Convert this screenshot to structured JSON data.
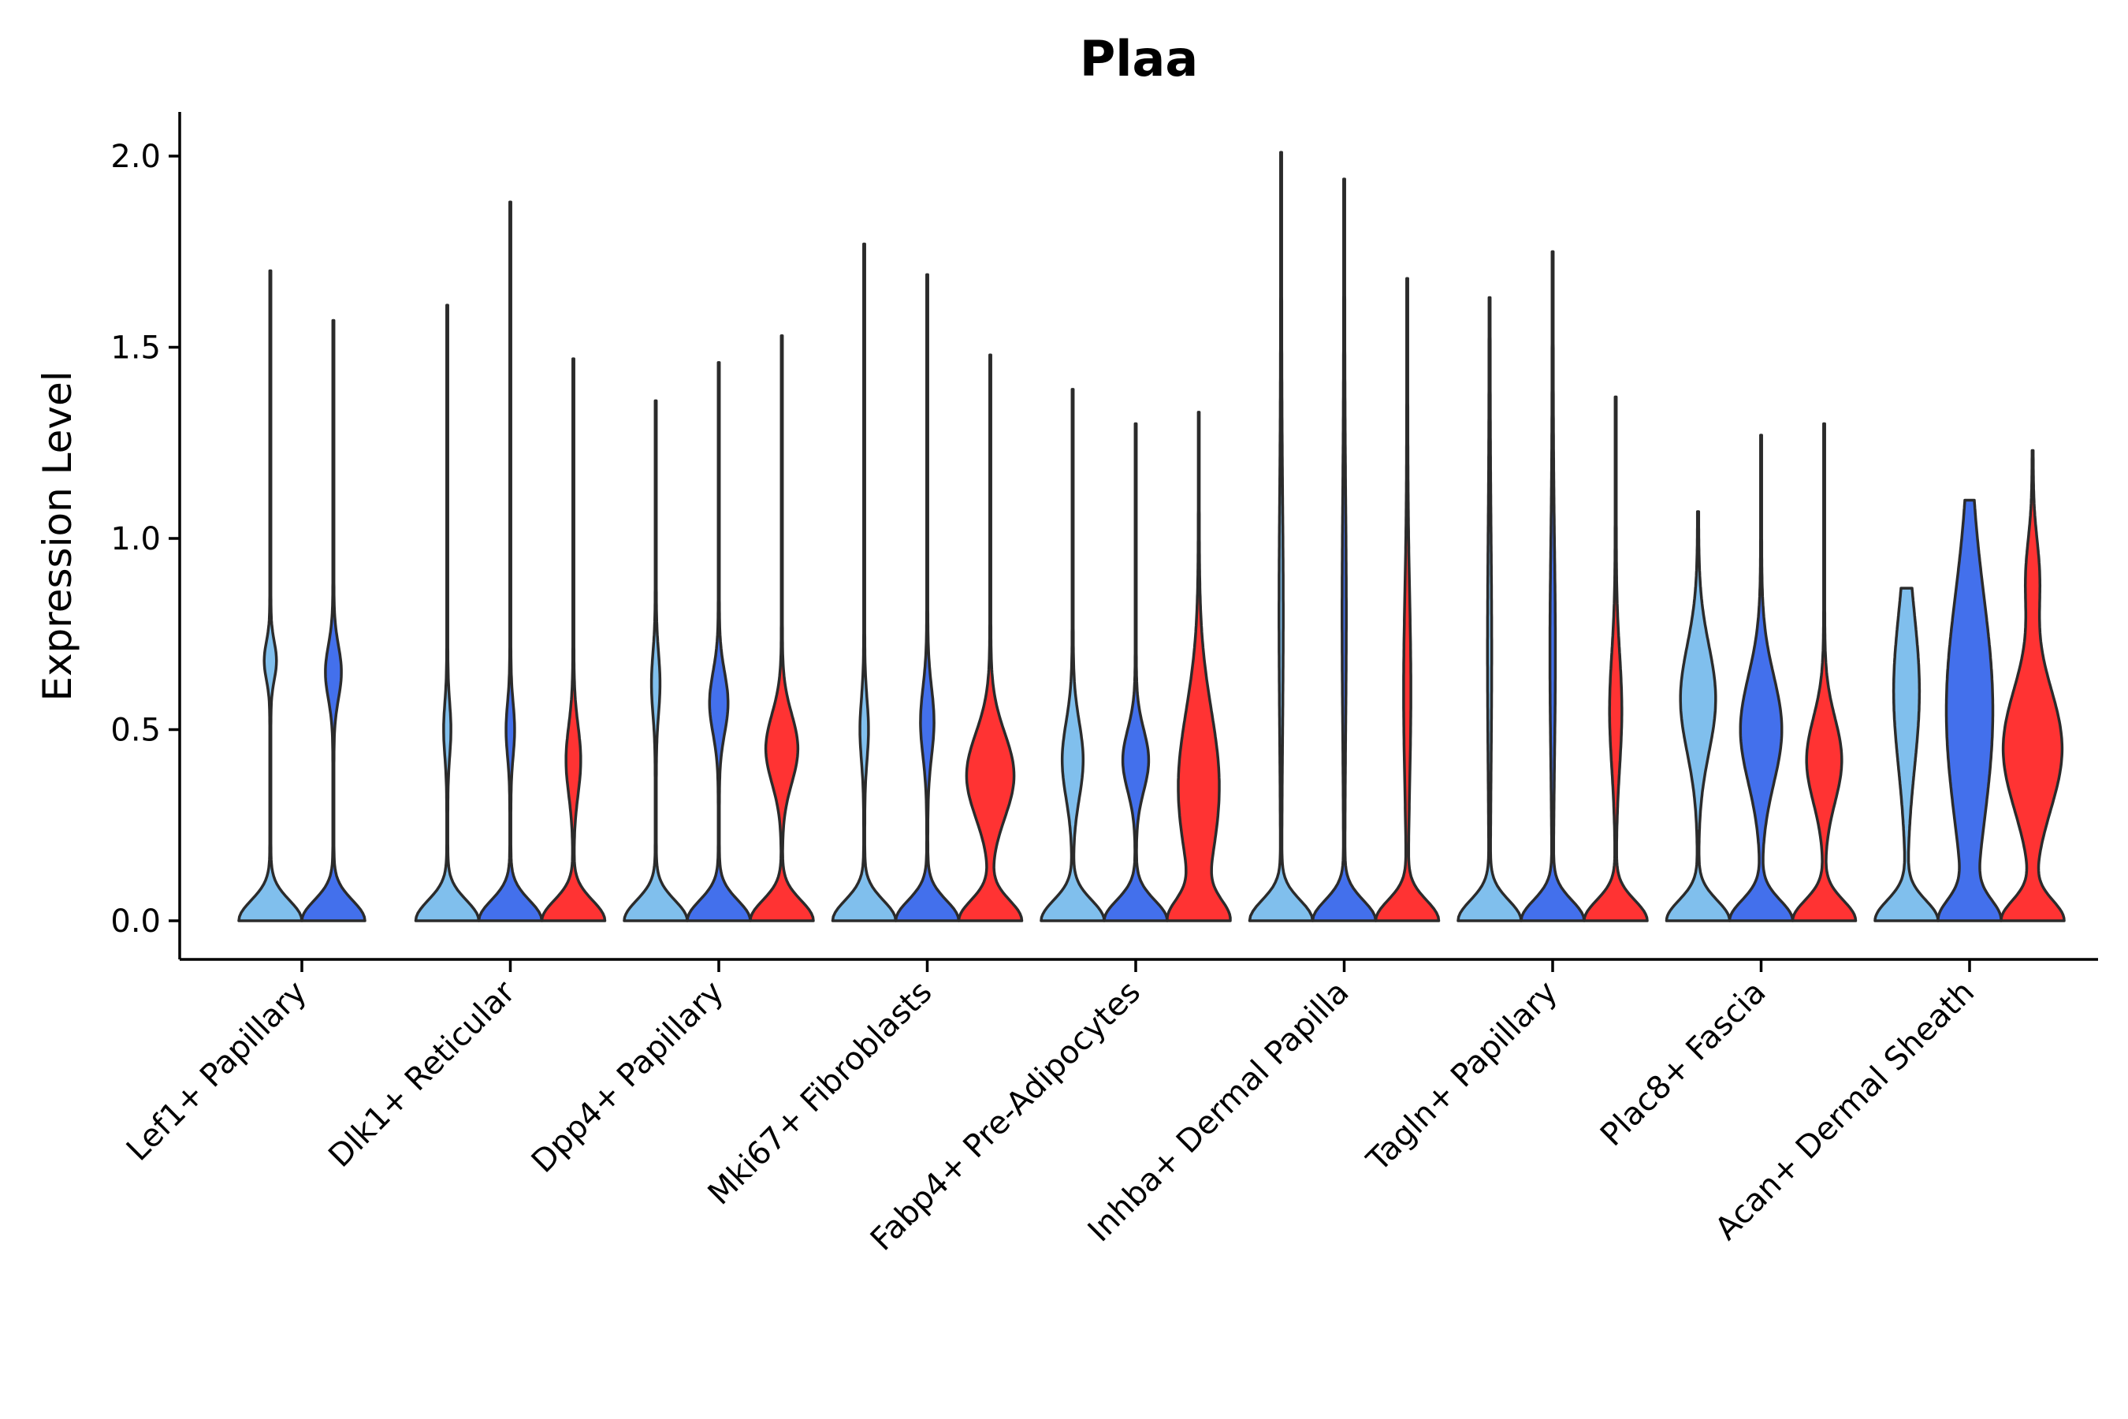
{
  "chart_data": {
    "type": "violin",
    "title": "Plaa",
    "xlabel": "",
    "ylabel": "Expression Level",
    "ylim": [
      -0.1,
      2.12
    ],
    "yticks": [
      "0.0",
      "0.5",
      "1.0",
      "1.5",
      "2.0"
    ],
    "ytick_values": [
      0,
      0.5,
      1.0,
      1.5,
      2.0
    ],
    "grid": false,
    "legend": "none",
    "series_colors": [
      "#80bfed",
      "#4370ec",
      "#ff3333"
    ],
    "categories": [
      "Lef1+ Papillary",
      "Dlk1+ Reticular",
      "Dpp4+ Papillary",
      "Mki67+ Fibroblasts",
      "Fabp4+ Pre-Adipocytes",
      "Inhba+ Dermal Papilla",
      "Tagln+ Papillary",
      "Plac8+ Fascia",
      "Acan+ Dermal Sheath"
    ],
    "violins": [
      {
        "category": "Lef1+ Papillary",
        "series": 0,
        "max": 1.7,
        "modes": [
          [
            0.68,
            0.18,
            0.05
          ]
        ]
      },
      {
        "category": "Lef1+ Papillary",
        "series": 1,
        "max": 1.57,
        "modes": [
          [
            0.65,
            0.24,
            0.07
          ]
        ]
      },
      {
        "category": "Dlk1+ Reticular",
        "series": 0,
        "max": 1.61,
        "modes": [
          [
            0.5,
            0.1,
            0.07
          ]
        ]
      },
      {
        "category": "Dlk1+ Reticular",
        "series": 1,
        "max": 1.88,
        "modes": [
          [
            0.5,
            0.12,
            0.07
          ]
        ]
      },
      {
        "category": "Dlk1+ Reticular",
        "series": 2,
        "max": 1.47,
        "modes": [
          [
            0.42,
            0.22,
            0.09
          ]
        ]
      },
      {
        "category": "Dpp4+ Papillary",
        "series": 0,
        "max": 1.36,
        "modes": [
          [
            0.62,
            0.12,
            0.08
          ]
        ]
      },
      {
        "category": "Dpp4+ Papillary",
        "series": 1,
        "max": 1.46,
        "modes": [
          [
            0.57,
            0.28,
            0.08
          ]
        ]
      },
      {
        "category": "Dpp4+ Papillary",
        "series": 2,
        "max": 1.53,
        "modes": [
          [
            0.45,
            0.5,
            0.09
          ]
        ]
      },
      {
        "category": "Mki67+ Fibroblasts",
        "series": 0,
        "max": 1.77,
        "modes": [
          [
            0.5,
            0.12,
            0.08
          ]
        ]
      },
      {
        "category": "Mki67+ Fibroblasts",
        "series": 1,
        "max": 1.69,
        "modes": [
          [
            0.52,
            0.2,
            0.09
          ]
        ]
      },
      {
        "category": "Mki67+ Fibroblasts",
        "series": 2,
        "max": 1.48,
        "modes": [
          [
            0.38,
            0.75,
            0.11
          ]
        ]
      },
      {
        "category": "Fabp4+ Pre-Adipocytes",
        "series": 0,
        "max": 1.39,
        "modes": [
          [
            0.42,
            0.32,
            0.1
          ]
        ]
      },
      {
        "category": "Fabp4+ Pre-Adipocytes",
        "series": 1,
        "max": 1.3,
        "modes": [
          [
            0.42,
            0.4,
            0.08
          ]
        ]
      },
      {
        "category": "Fabp4+ Pre-Adipocytes",
        "series": 2,
        "max": 1.33,
        "modes": [
          [
            0.35,
            0.75,
            0.2
          ]
        ]
      },
      {
        "category": "Inhba+ Dermal Papilla",
        "series": 0,
        "max": 2.01,
        "modes": [
          [
            0.8,
            0.05,
            0.3
          ]
        ]
      },
      {
        "category": "Inhba+ Dermal Papilla",
        "series": 1,
        "max": 1.94,
        "modes": [
          [
            0.8,
            0.05,
            0.3
          ]
        ]
      },
      {
        "category": "Inhba+ Dermal Papilla",
        "series": 2,
        "max": 1.68,
        "modes": [
          [
            0.6,
            0.1,
            0.25
          ]
        ]
      },
      {
        "category": "Tagln+ Papillary",
        "series": 0,
        "max": 1.63,
        "modes": [
          [
            0.7,
            0.05,
            0.3
          ]
        ]
      },
      {
        "category": "Tagln+ Papillary",
        "series": 1,
        "max": 1.75,
        "modes": [
          [
            0.7,
            0.07,
            0.28
          ]
        ]
      },
      {
        "category": "Tagln+ Papillary",
        "series": 2,
        "max": 1.37,
        "modes": [
          [
            0.55,
            0.18,
            0.15
          ]
        ]
      },
      {
        "category": "Plac8+ Fascia",
        "series": 0,
        "max": 1.07,
        "modes": [
          [
            0.58,
            0.55,
            0.14
          ]
        ]
      },
      {
        "category": "Plac8+ Fascia",
        "series": 1,
        "max": 1.27,
        "modes": [
          [
            0.5,
            0.65,
            0.14
          ]
        ]
      },
      {
        "category": "Plac8+ Fascia",
        "series": 2,
        "max": 1.3,
        "modes": [
          [
            0.42,
            0.55,
            0.11
          ]
        ]
      },
      {
        "category": "Acan+ Dermal Sheath",
        "series": 0,
        "max": 0.87,
        "modes": [
          [
            0.6,
            0.4,
            0.2
          ]
        ]
      },
      {
        "category": "Acan+ Dermal Sheath",
        "series": 1,
        "max": 1.1,
        "modes": [
          [
            0.55,
            0.85,
            0.3
          ]
        ]
      },
      {
        "category": "Acan+ Dermal Sheath",
        "series": 2,
        "max": 1.23,
        "modes": [
          [
            0.45,
            0.95,
            0.16
          ],
          [
            0.9,
            0.2,
            0.1
          ]
        ]
      }
    ]
  }
}
